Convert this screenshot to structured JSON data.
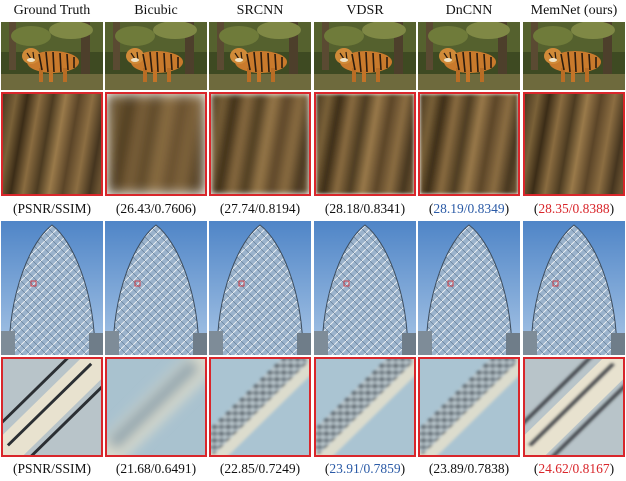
{
  "methods": [
    "Ground Truth",
    "Bicubic",
    "SRCNN",
    "VDSR",
    "DnCNN",
    "MemNet (ours)"
  ],
  "tiger_scores": [
    {
      "psnr": "",
      "ssim": "",
      "label": "(PSNR/SSIM)",
      "rank": "none"
    },
    {
      "psnr": "26.43",
      "ssim": "0.7606",
      "rank": "none"
    },
    {
      "psnr": "27.74",
      "ssim": "0.8194",
      "rank": "none"
    },
    {
      "psnr": "28.18",
      "ssim": "0.8341",
      "rank": "none"
    },
    {
      "psnr": "28.19",
      "ssim": "0.8349",
      "rank": "second"
    },
    {
      "psnr": "28.35",
      "ssim": "0.8388",
      "rank": "best"
    }
  ],
  "building_scores": [
    {
      "psnr": "",
      "ssim": "",
      "label": "(PSNR/SSIM)",
      "rank": "none"
    },
    {
      "psnr": "21.68",
      "ssim": "0.6491",
      "rank": "none"
    },
    {
      "psnr": "22.85",
      "ssim": "0.7249",
      "rank": "none"
    },
    {
      "psnr": "23.91",
      "ssim": "0.7859",
      "rank": "second"
    },
    {
      "psnr": "23.89",
      "ssim": "0.7838",
      "rank": "none"
    },
    {
      "psnr": "24.62",
      "ssim": "0.8167",
      "rank": "best"
    }
  ],
  "colors": {
    "best": "#d9262b",
    "second": "#2a5aa6",
    "normal": "#111111",
    "crop_border": "#d9262b"
  }
}
